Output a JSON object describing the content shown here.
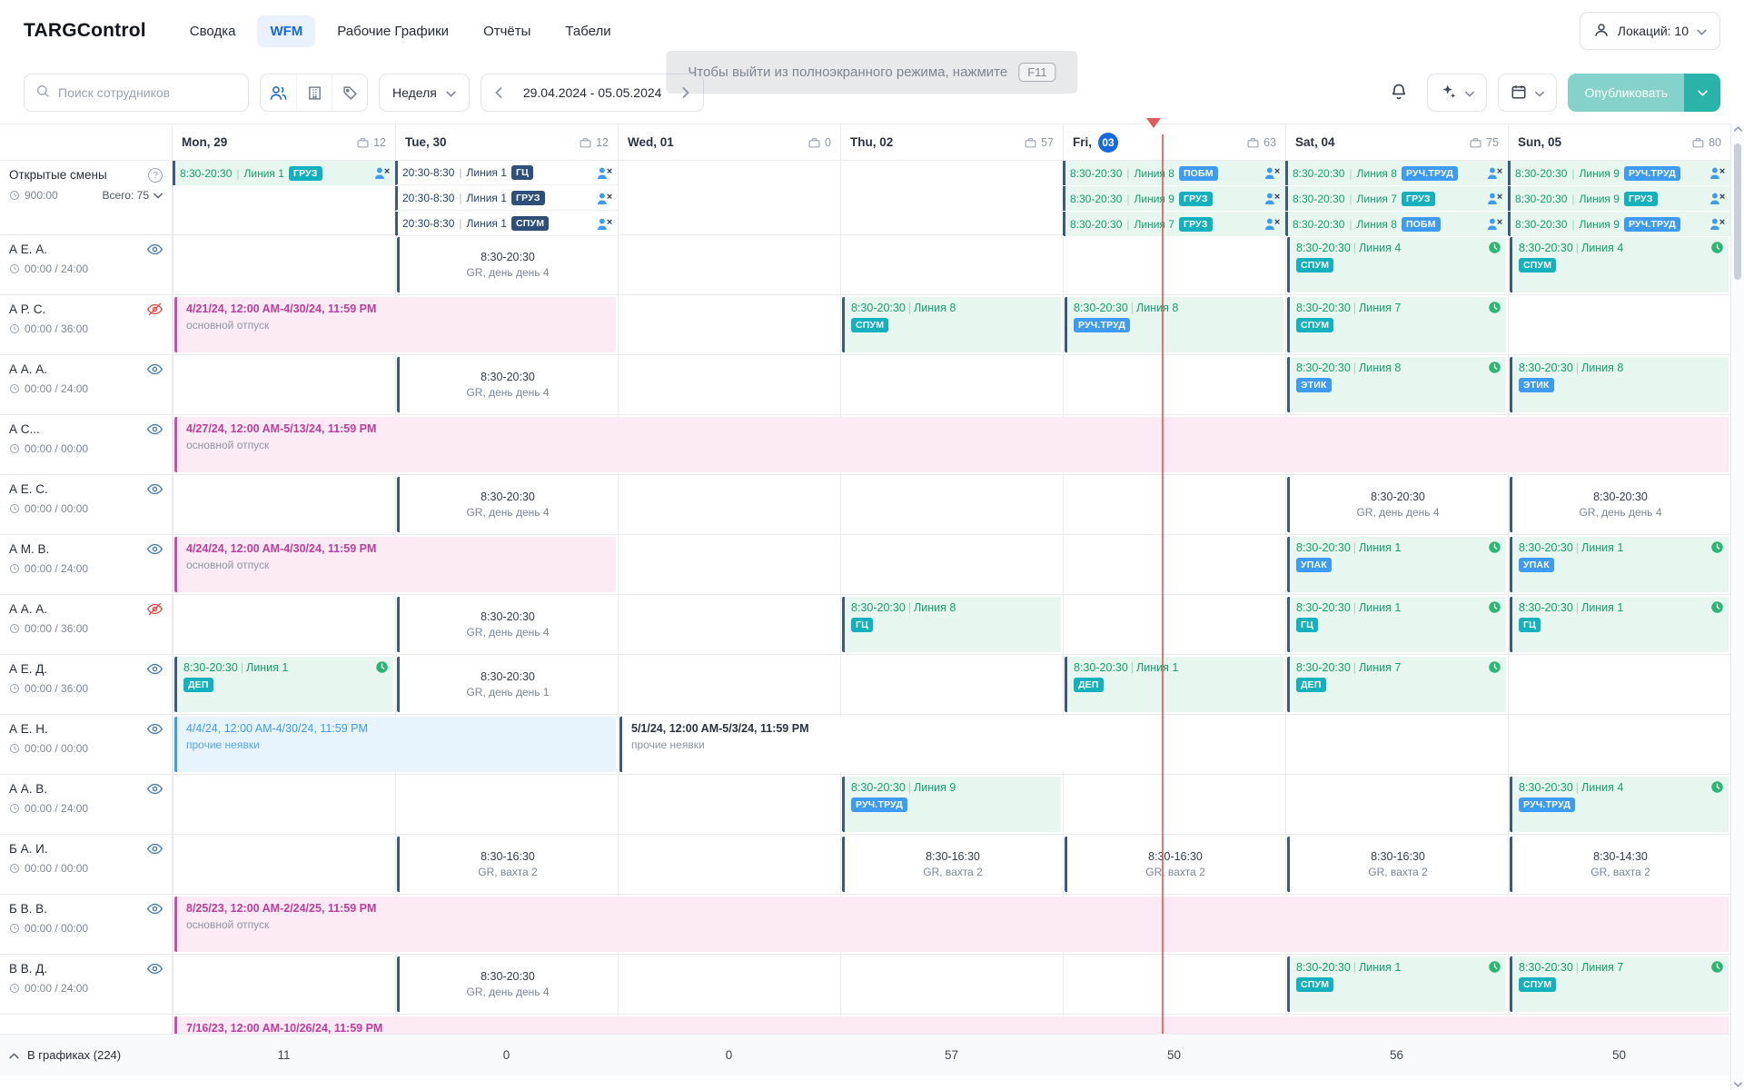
{
  "app": {
    "logo": "TARGControl"
  },
  "nav": {
    "items": [
      {
        "id": "svodka",
        "label": "Сводка",
        "active": false
      },
      {
        "id": "wfm",
        "label": "WFM",
        "active": true
      },
      {
        "id": "rabochie-grafiki",
        "label": "Рабочие Графики",
        "active": false
      },
      {
        "id": "otchety",
        "label": "Отчёты",
        "active": false
      },
      {
        "id": "tabeli",
        "label": "Табели",
        "active": false
      }
    ]
  },
  "locations": {
    "label": "Локаций: 10"
  },
  "toolbar": {
    "search_placeholder": "Поиск сотрудников",
    "view_mode": "Неделя",
    "date_range": "29.04.2024 - 05.05.2024",
    "publish_label": "Опубликовать"
  },
  "toast": {
    "text": "Чтобы выйти из полноэкранного режима, нажмите",
    "key": "F11"
  },
  "days": [
    {
      "label": "Mon, 29",
      "count": "12"
    },
    {
      "label": "Tue, 30",
      "count": "12"
    },
    {
      "label": "Wed, 01",
      "count": "0"
    },
    {
      "label": "Thu, 02",
      "count": "57"
    },
    {
      "label": "Fri,",
      "today": "03",
      "count": "63"
    },
    {
      "label": "Sat, 04",
      "count": "75"
    },
    {
      "label": "Sun, 05",
      "count": "80"
    }
  ],
  "open_shifts": {
    "title": "Открытые смены",
    "hours": "900:00",
    "total": "Всего: 75",
    "columns": [
      {
        "day": 0,
        "entries": [
          {
            "time": "8:30-20:30",
            "line": "Линия 1",
            "tag": "ГРУЗ",
            "tag_color": "teal",
            "theme": "green"
          }
        ]
      },
      {
        "day": 1,
        "entries": [
          {
            "time": "20:30-8:30",
            "line": "Линия 1",
            "tag": "ГЦ",
            "tag_color": "navy",
            "theme": "night"
          },
          {
            "time": "20:30-8:30",
            "line": "Линия 1",
            "tag": "ГРУЗ",
            "tag_color": "navy",
            "theme": "night"
          },
          {
            "time": "20:30-8:30",
            "line": "Линия 1",
            "tag": "СПУМ",
            "tag_color": "navy",
            "theme": "night"
          }
        ]
      },
      {
        "day": 4,
        "entries": [
          {
            "time": "8:30-20:30",
            "line": "Линия 8",
            "tag": "ПОБМ",
            "tag_color": "blue",
            "theme": "green"
          },
          {
            "time": "8:30-20:30",
            "line": "Линия 9",
            "tag": "ГРУЗ",
            "tag_color": "teal",
            "theme": "green"
          },
          {
            "time": "8:30-20:30",
            "line": "Линия 7",
            "tag": "ГРУЗ",
            "tag_color": "teal",
            "theme": "green"
          }
        ]
      },
      {
        "day": 5,
        "entries": [
          {
            "time": "8:30-20:30",
            "line": "Линия 8",
            "tag": "РУЧ.ТРУД",
            "tag_color": "blue",
            "theme": "green"
          },
          {
            "time": "8:30-20:30",
            "line": "Линия 7",
            "tag": "ГРУЗ",
            "tag_color": "teal",
            "theme": "green"
          },
          {
            "time": "8:30-20:30",
            "line": "Линия 8",
            "tag": "ПОБМ",
            "tag_color": "blue",
            "theme": "green"
          }
        ]
      },
      {
        "day": 6,
        "entries": [
          {
            "time": "8:30-20:30",
            "line": "Линия 9",
            "tag": "РУЧ.ТРУД",
            "tag_color": "blue",
            "theme": "green"
          },
          {
            "time": "8:30-20:30",
            "line": "Линия 9",
            "tag": "ГРУЗ",
            "tag_color": "teal",
            "theme": "green"
          },
          {
            "time": "8:30-20:30",
            "line": "Линия 9",
            "tag": "РУЧ.ТРУД",
            "tag_color": "blue",
            "theme": "green"
          }
        ]
      }
    ]
  },
  "employees": [
    {
      "name": "А Е. А.",
      "hours": "00:00 / 24:00",
      "visibility": "visible",
      "cells": [
        {
          "day": 1,
          "type": "gr",
          "time": "8:30-20:30",
          "label": "GR, день день 4"
        },
        {
          "day": 5,
          "type": "shift",
          "time": "8:30-20:30",
          "line": "Линия 4",
          "tag": "СПУМ",
          "tag_color": "teal",
          "clock": true
        },
        {
          "day": 6,
          "type": "shift",
          "time": "8:30-20:30",
          "line": "Линия 4",
          "tag": "СПУМ",
          "tag_color": "teal",
          "clock": true
        }
      ]
    },
    {
      "name": "А Р. С.",
      "hours": "00:00 / 36:00",
      "visibility": "hidden",
      "cells": [
        {
          "day": 0,
          "span": 2,
          "type": "vacation",
          "line1": "4/21/24, 12:00 AM-4/30/24, 11:59 PM",
          "line2": "основной отпуск"
        },
        {
          "day": 3,
          "type": "shift",
          "time": "8:30-20:30",
          "line": "Линия 8",
          "tag": "СПУМ",
          "tag_color": "teal"
        },
        {
          "day": 4,
          "type": "shift",
          "time": "8:30-20:30",
          "line": "Линия 8",
          "tag": "РУЧ.ТРУД",
          "tag_color": "blue"
        },
        {
          "day": 5,
          "type": "shift",
          "time": "8:30-20:30",
          "line": "Линия 7",
          "tag": "СПУМ",
          "tag_color": "teal",
          "clock": true
        }
      ]
    },
    {
      "name": "А А. А.",
      "hours": "00:00 / 24:00",
      "visibility": "visible",
      "cells": [
        {
          "day": 1,
          "type": "gr",
          "time": "8:30-20:30",
          "label": "GR, день день 4"
        },
        {
          "day": 5,
          "type": "shift",
          "time": "8:30-20:30",
          "line": "Линия 8",
          "tag": "ЭТИК",
          "tag_color": "blue",
          "clock": true
        },
        {
          "day": 6,
          "type": "shift",
          "time": "8:30-20:30",
          "line": "Линия 8",
          "tag": "ЭТИК",
          "tag_color": "blue"
        }
      ]
    },
    {
      "name": "А С...",
      "hours": "00:00 / 00:00",
      "visibility": "visible",
      "cells": [
        {
          "day": 0,
          "span": 7,
          "type": "vacation",
          "line1": "4/27/24, 12:00 AM-5/13/24, 11:59 PM",
          "line2": "основной отпуск"
        }
      ]
    },
    {
      "name": "А Е. С.",
      "hours": "00:00 / 00:00",
      "visibility": "visible",
      "cells": [
        {
          "day": 1,
          "type": "gr",
          "time": "8:30-20:30",
          "label": "GR, день день 4"
        },
        {
          "day": 5,
          "type": "gr",
          "time": "8:30-20:30",
          "label": "GR, день день 4"
        },
        {
          "day": 6,
          "type": "gr",
          "time": "8:30-20:30",
          "label": "GR, день день 4"
        }
      ]
    },
    {
      "name": "А М. В.",
      "hours": "00:00 / 24:00",
      "visibility": "visible",
      "cells": [
        {
          "day": 0,
          "span": 2,
          "type": "vacation",
          "line1": "4/24/24, 12:00 AM-4/30/24, 11:59 PM",
          "line2": "основной отпуск"
        },
        {
          "day": 5,
          "type": "shift",
          "time": "8:30-20:30",
          "line": "Линия 1",
          "tag": "УПАК",
          "tag_color": "blue",
          "clock": true
        },
        {
          "day": 6,
          "type": "shift",
          "time": "8:30-20:30",
          "line": "Линия 1",
          "tag": "УПАК",
          "tag_color": "blue",
          "clock": true
        }
      ]
    },
    {
      "name": "А А. А.",
      "hours": "00:00 / 36:00",
      "visibility": "hidden",
      "cells": [
        {
          "day": 1,
          "type": "gr",
          "time": "8:30-20:30",
          "label": "GR, день день 4"
        },
        {
          "day": 3,
          "type": "shift",
          "time": "8:30-20:30",
          "line": "Линия 8",
          "tag": "ГЦ",
          "tag_color": "teal"
        },
        {
          "day": 5,
          "type": "shift",
          "time": "8:30-20:30",
          "line": "Линия 1",
          "tag": "ГЦ",
          "tag_color": "teal",
          "clock": true
        },
        {
          "day": 6,
          "type": "shift",
          "time": "8:30-20:30",
          "line": "Линия 1",
          "tag": "ГЦ",
          "tag_color": "teal",
          "clock": true
        }
      ]
    },
    {
      "name": "А Е. Д.",
      "hours": "00:00 / 36:00",
      "visibility": "visible",
      "cells": [
        {
          "day": 0,
          "type": "shift",
          "time": "8:30-20:30",
          "line": "Линия 1",
          "tag": "ДЕП",
          "tag_color": "teal",
          "clock": true
        },
        {
          "day": 1,
          "type": "gr",
          "time": "8:30-20:30",
          "label": "GR, день день 1"
        },
        {
          "day": 4,
          "type": "shift",
          "time": "8:30-20:30",
          "line": "Линия 1",
          "tag": "ДЕП",
          "tag_color": "teal"
        },
        {
          "day": 5,
          "type": "shift",
          "time": "8:30-20:30",
          "line": "Линия 7",
          "tag": "ДЕП",
          "tag_color": "teal",
          "clock": true
        }
      ]
    },
    {
      "name": "А Е. Н.",
      "hours": "00:00 / 00:00",
      "visibility": "visible",
      "cells": [
        {
          "day": 0,
          "span": 2,
          "type": "absence_blue",
          "line1": "4/4/24, 12:00 AM-4/30/24, 11:59 PM",
          "line2": "прочие неявки"
        },
        {
          "day": 2,
          "span": 3,
          "type": "absence_plain",
          "line1": "5/1/24, 12:00 AM-5/3/24, 11:59 PM",
          "line2": "прочие неявки"
        }
      ]
    },
    {
      "name": "А А. В.",
      "hours": "00:00 / 24:00",
      "visibility": "visible",
      "cells": [
        {
          "day": 3,
          "type": "shift",
          "time": "8:30-20:30",
          "line": "Линия 9",
          "tag": "РУЧ.ТРУД",
          "tag_color": "blue"
        },
        {
          "day": 6,
          "type": "shift",
          "time": "8:30-20:30",
          "line": "Линия 4",
          "tag": "РУЧ.ТРУД",
          "tag_color": "blue",
          "clock": true
        }
      ]
    },
    {
      "name": "Б А. И.",
      "hours": "00:00 / 00:00",
      "visibility": "visible",
      "cells": [
        {
          "day": 1,
          "type": "gr",
          "time": "8:30-16:30",
          "label": "GR, вахта 2"
        },
        {
          "day": 3,
          "type": "gr",
          "time": "8:30-16:30",
          "label": "GR, вахта 2"
        },
        {
          "day": 4,
          "type": "gr",
          "time": "8:30-16:30",
          "label": "GR, вахта 2"
        },
        {
          "day": 5,
          "type": "gr",
          "time": "8:30-16:30",
          "label": "GR, вахта 2"
        },
        {
          "day": 6,
          "type": "gr",
          "time": "8:30-14:30",
          "label": "GR, вахта 2"
        }
      ]
    },
    {
      "name": "Б В. В.",
      "hours": "00:00 / 00:00",
      "visibility": "visible",
      "cells": [
        {
          "day": 0,
          "span": 7,
          "type": "vacation",
          "line1": "8/25/23, 12:00 AM-2/24/25, 11:59 PM",
          "line2": "основной отпуск"
        }
      ]
    },
    {
      "name": "В В. Д.",
      "hours": "00:00 / 24:00",
      "visibility": "visible",
      "cells": [
        {
          "day": 1,
          "type": "gr",
          "time": "8:30-20:30",
          "label": "GR, день день 4"
        },
        {
          "day": 5,
          "type": "shift",
          "time": "8:30-20:30",
          "line": "Линия 1",
          "tag": "СПУМ",
          "tag_color": "teal",
          "clock": true
        },
        {
          "day": 6,
          "type": "shift",
          "time": "8:30-20:30",
          "line": "Линия 7",
          "tag": "СПУМ",
          "tag_color": "teal",
          "clock": true
        }
      ]
    },
    {
      "name": "",
      "hours": "",
      "visibility": "none",
      "partial": true,
      "cells": [
        {
          "day": 0,
          "span": 7,
          "type": "vacation",
          "line1": "7/16/23, 12:00 AM-10/26/24, 11:59 PM",
          "line2": ""
        }
      ]
    }
  ],
  "footer": {
    "label": "В графиках (224)",
    "totals": [
      "11",
      "0",
      "0",
      "57",
      "50",
      "56",
      "50"
    ]
  },
  "colors": {
    "accent": "#1769e0",
    "publish_teal": "#2ab3a9",
    "publish_light": "#85d2cb",
    "today_red": "#e05c5c",
    "shift_green_bg": "#e7f6ef",
    "shift_green_text": "#13a06b",
    "night_text": "#24436b",
    "vacation_bg": "#fcebf4",
    "vacation_text": "#bd3d9c",
    "absence_blue_bg": "#e7f3fd",
    "absence_blue_text": "#3d9bf2",
    "tag": {
      "teal": "#12b1bd",
      "blue": "#3d9bf2",
      "navy": "#2d4f79"
    }
  }
}
